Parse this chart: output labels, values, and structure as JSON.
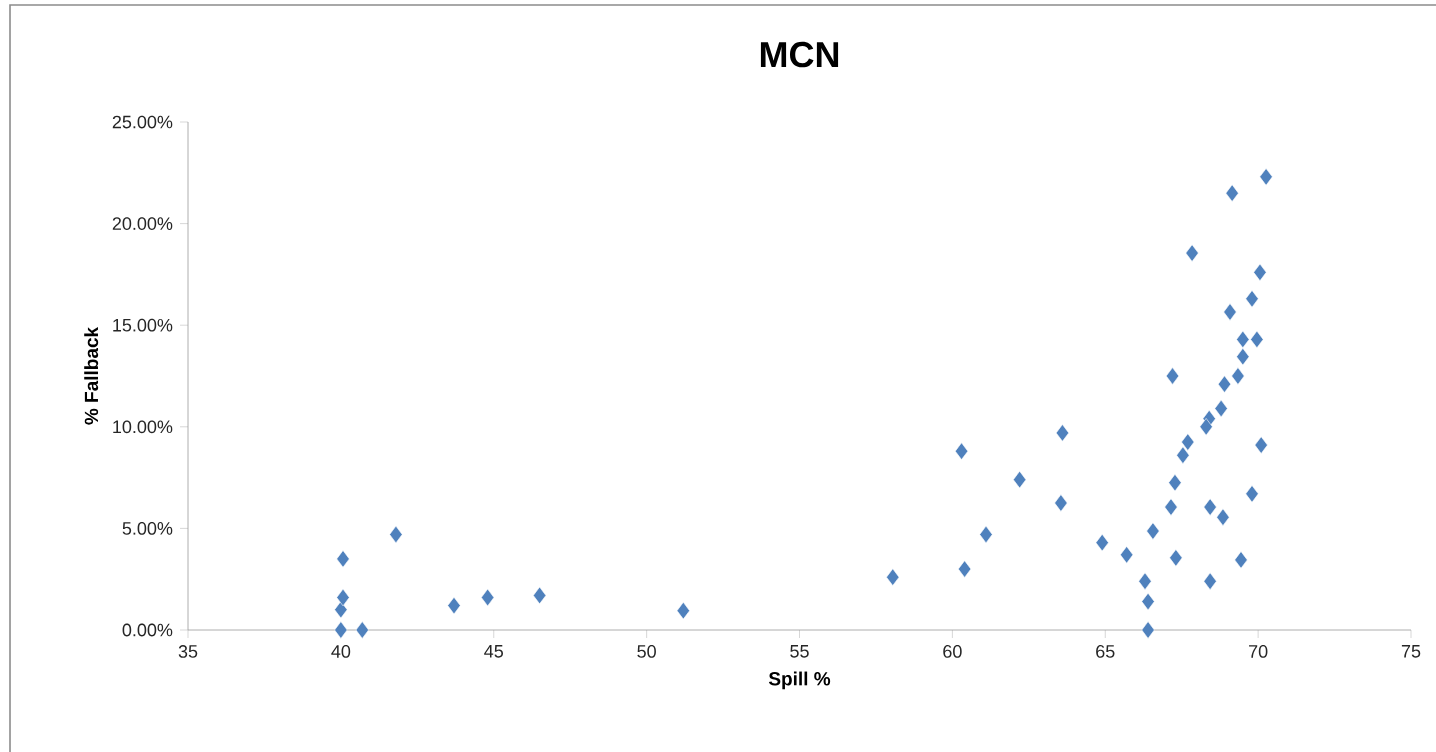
{
  "chart_data": {
    "type": "scatter",
    "title": "MCN",
    "xlabel": "Spill %",
    "ylabel": "% Fallback",
    "xlim": [
      35,
      75
    ],
    "xticks": [
      35,
      40,
      45,
      50,
      55,
      60,
      65,
      70,
      75
    ],
    "ylim": [
      0,
      25
    ],
    "yticks": [
      {
        "value": 0,
        "label": "0.00%"
      },
      {
        "value": 5,
        "label": "5.00%"
      },
      {
        "value": 10,
        "label": "10.00%"
      },
      {
        "value": 15,
        "label": "15.00%"
      },
      {
        "value": 20,
        "label": "20.00%"
      },
      {
        "value": 25,
        "label": "25.00%"
      }
    ],
    "marker": "diamond",
    "grid": false,
    "legend": false,
    "series": [
      {
        "color": "#4f81bd",
        "x": [
          40.0,
          40.0,
          40.07,
          40.07,
          40.7,
          41.8,
          43.7,
          44.8,
          46.5,
          51.2,
          58.05,
          60.3,
          60.4,
          61.1,
          62.2,
          63.55,
          63.6,
          64.9,
          65.7,
          66.3,
          66.4,
          66.4,
          70.26,
          69.15,
          67.84,
          70.06,
          69.8,
          69.08,
          69.5,
          69.96,
          69.5,
          67.2,
          69.34,
          68.9,
          68.79,
          68.4,
          68.3,
          70.1,
          67.7,
          67.54,
          67.28,
          67.15,
          68.43,
          68.85,
          69.8,
          66.56,
          67.31,
          69.44,
          68.43
        ],
        "values": [
          0,
          1.0,
          1.6,
          3.5,
          0,
          4.7,
          1.2,
          1.6,
          1.7,
          0.95,
          2.6,
          8.8,
          3.0,
          4.7,
          7.4,
          6.25,
          9.7,
          4.3,
          3.7,
          2.4,
          1.4,
          0,
          22.3,
          21.5,
          18.55,
          17.6,
          16.3,
          15.65,
          14.3,
          14.3,
          13.45,
          12.5,
          12.5,
          12.1,
          10.9,
          10.4,
          10.0,
          9.1,
          9.25,
          8.6,
          7.25,
          6.05,
          6.05,
          5.55,
          6.7,
          4.87,
          3.55,
          3.45,
          2.4
        ]
      }
    ]
  }
}
